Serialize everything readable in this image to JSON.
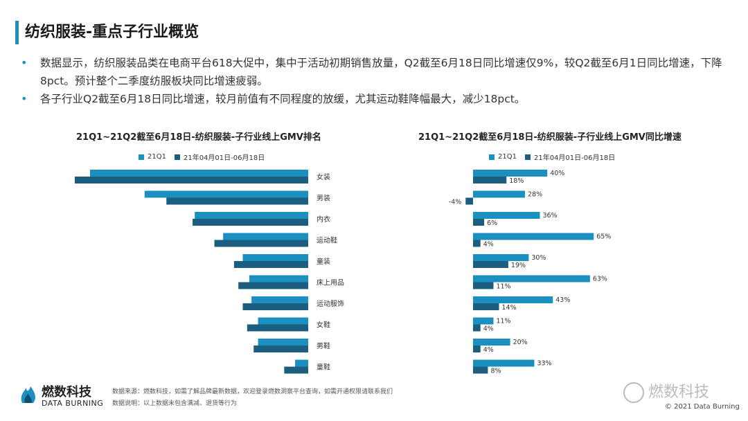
{
  "slide": {
    "title": "纺织服装-重点子行业概览",
    "bullets": [
      "数据显示，纺织服装品类在电商平台618大促中，集中于活动初期销售放量，Q2截至6月18日同比增速仅9%，较Q2截至6月1日同比增速，下降8pct。预计整个二季度纺服板块同比增速疲弱。",
      "各子行业Q2截至6月18日同比增速，较月前值有不同程度的放缓，尤其运动鞋降幅最大，减少18pct。"
    ]
  },
  "colors": {
    "accent": "#1f8fb8",
    "series1": "#1a8fc0",
    "series2": "#1b5e80"
  },
  "legend": {
    "s1": "21Q1",
    "s2": "21年04月01日-06月18日"
  },
  "footer": {
    "brand_cn": "燃数科技",
    "brand_en": "DATA BURNING",
    "source": "数据来源：燃数科技，如需了解品牌最新数据，欢迎登录燃数洞察平台查询，如需开通权限请联系我们",
    "note": "数据说明：以上数据未包含满减、退货等行为",
    "watermark": "燃数科技",
    "copyright": "© 2021 Data Burning"
  },
  "chart_data": [
    {
      "type": "bar",
      "orientation": "horizontal",
      "title": "21Q1~21Q2截至6月18日-纺织服装-子行业线上GMV排名",
      "categories": [
        "女装",
        "男装",
        "内衣",
        "运动鞋",
        "童装",
        "床上用品",
        "运动服饰",
        "女鞋",
        "男鞋",
        "童鞋"
      ],
      "series": [
        {
          "name": "21Q1",
          "values": [
            100,
            75,
            52,
            39,
            30,
            27,
            26,
            23,
            23,
            6
          ]
        },
        {
          "name": "21年04月01日-06月18日",
          "values": [
            107,
            65,
            53,
            43,
            34,
            32,
            30,
            28,
            25,
            11
          ]
        }
      ],
      "xlabel": "",
      "ylabel": "",
      "note": "relative scale, no value labels shown"
    },
    {
      "type": "bar",
      "orientation": "horizontal",
      "title": "21Q1~21Q2截至6月18日-纺织服装-子行业线上GMV同比增速",
      "categories": [
        "女装",
        "男装",
        "内衣",
        "运动鞋",
        "童装",
        "床上用品",
        "运动服饰",
        "女鞋",
        "男鞋",
        "童鞋"
      ],
      "series": [
        {
          "name": "21Q1",
          "values": [
            40,
            28,
            36,
            65,
            30,
            63,
            43,
            11,
            20,
            33
          ],
          "labels": [
            "40%",
            "28%",
            "36%",
            "65%",
            "30%",
            "63%",
            "43%",
            "11%",
            "20%",
            "33%"
          ]
        },
        {
          "name": "21年04月01日-06月18日",
          "values": [
            18,
            -4,
            6,
            4,
            19,
            11,
            14,
            4,
            4,
            8
          ],
          "labels": [
            "18%",
            "-4%",
            "6%",
            "4%",
            "19%",
            "11%",
            "14%",
            "4%",
            "4%",
            "8%"
          ]
        }
      ],
      "unit": "%"
    }
  ]
}
